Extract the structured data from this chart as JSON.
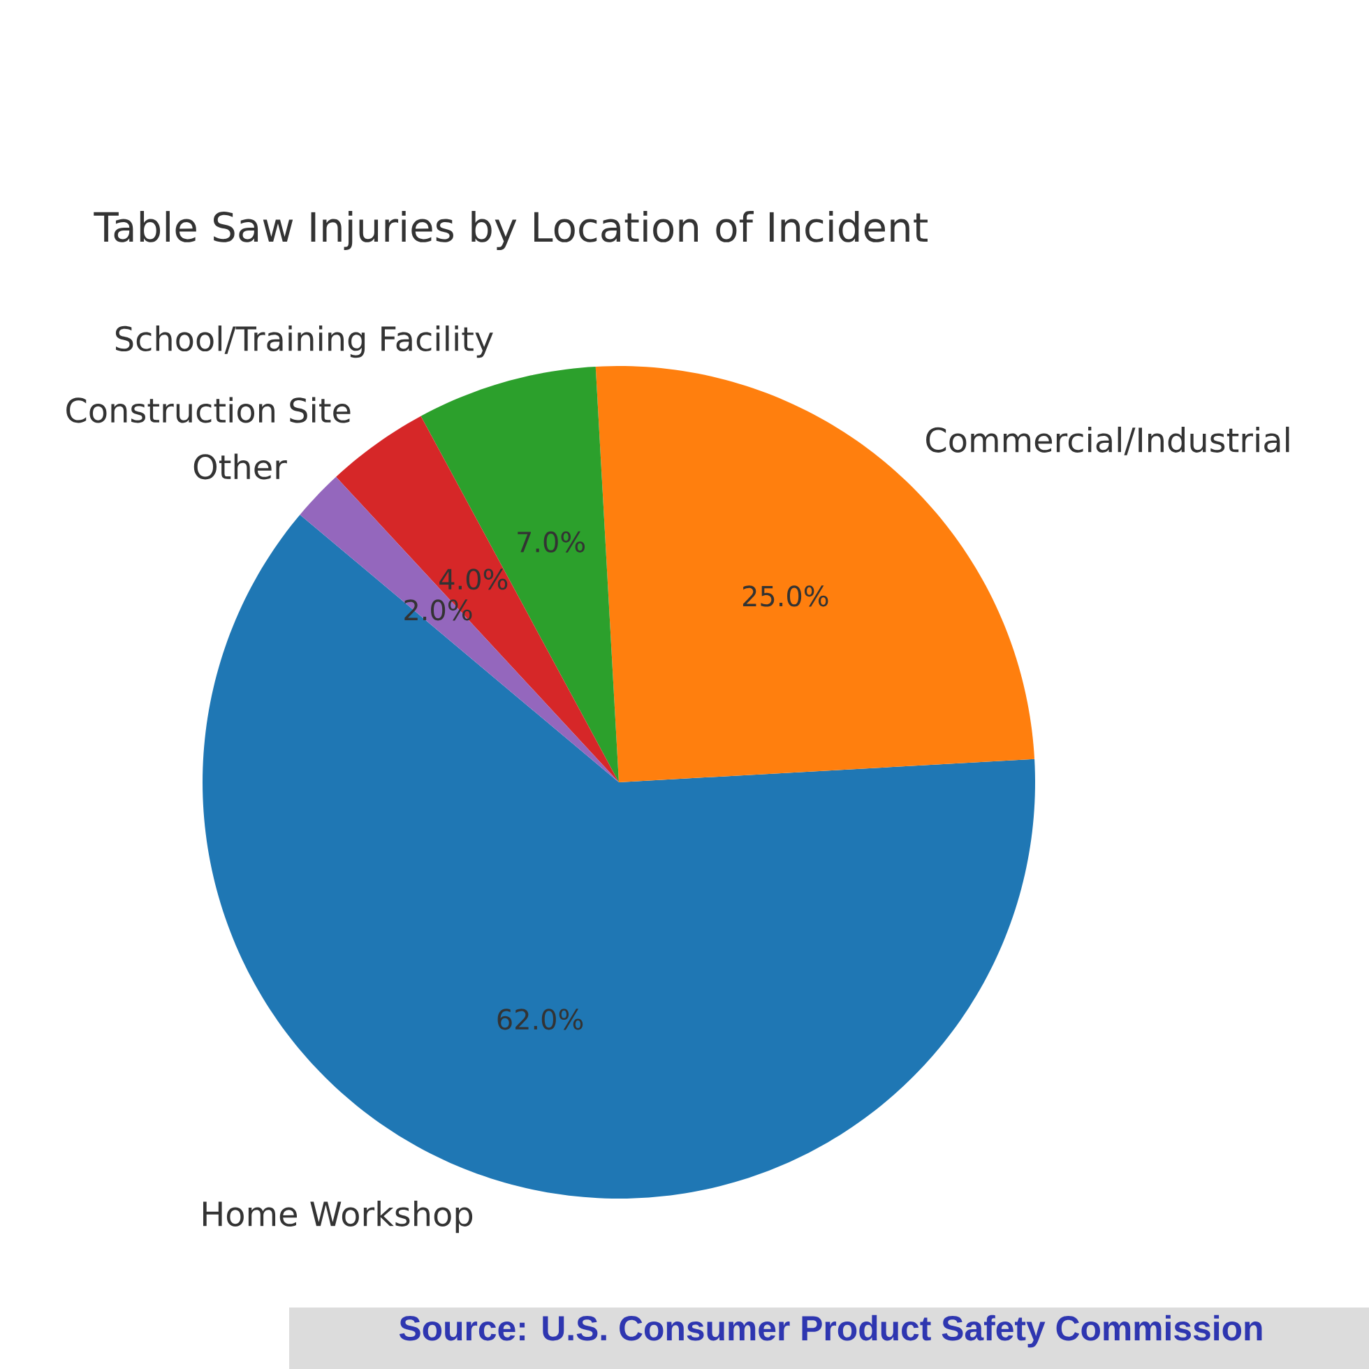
{
  "chart_data": {
    "type": "pie",
    "title": "Table Saw Injuries by Location of Incident",
    "categories": [
      "Home Workshop",
      "Commercial/Industrial",
      "School/Training Facility",
      "Construction Site",
      "Other"
    ],
    "values": [
      62,
      25,
      7,
      4,
      2
    ],
    "value_labels": [
      "62.0%",
      "25.0%",
      "7.0%",
      "4.0%",
      "2.0%"
    ],
    "colors": [
      "#1f77b4",
      "#ff7f0e",
      "#2ca02c",
      "#d62728",
      "#9467bd"
    ],
    "annotations": [
      "Source: U.S. Consumer Product Safety Commission"
    ]
  }
}
